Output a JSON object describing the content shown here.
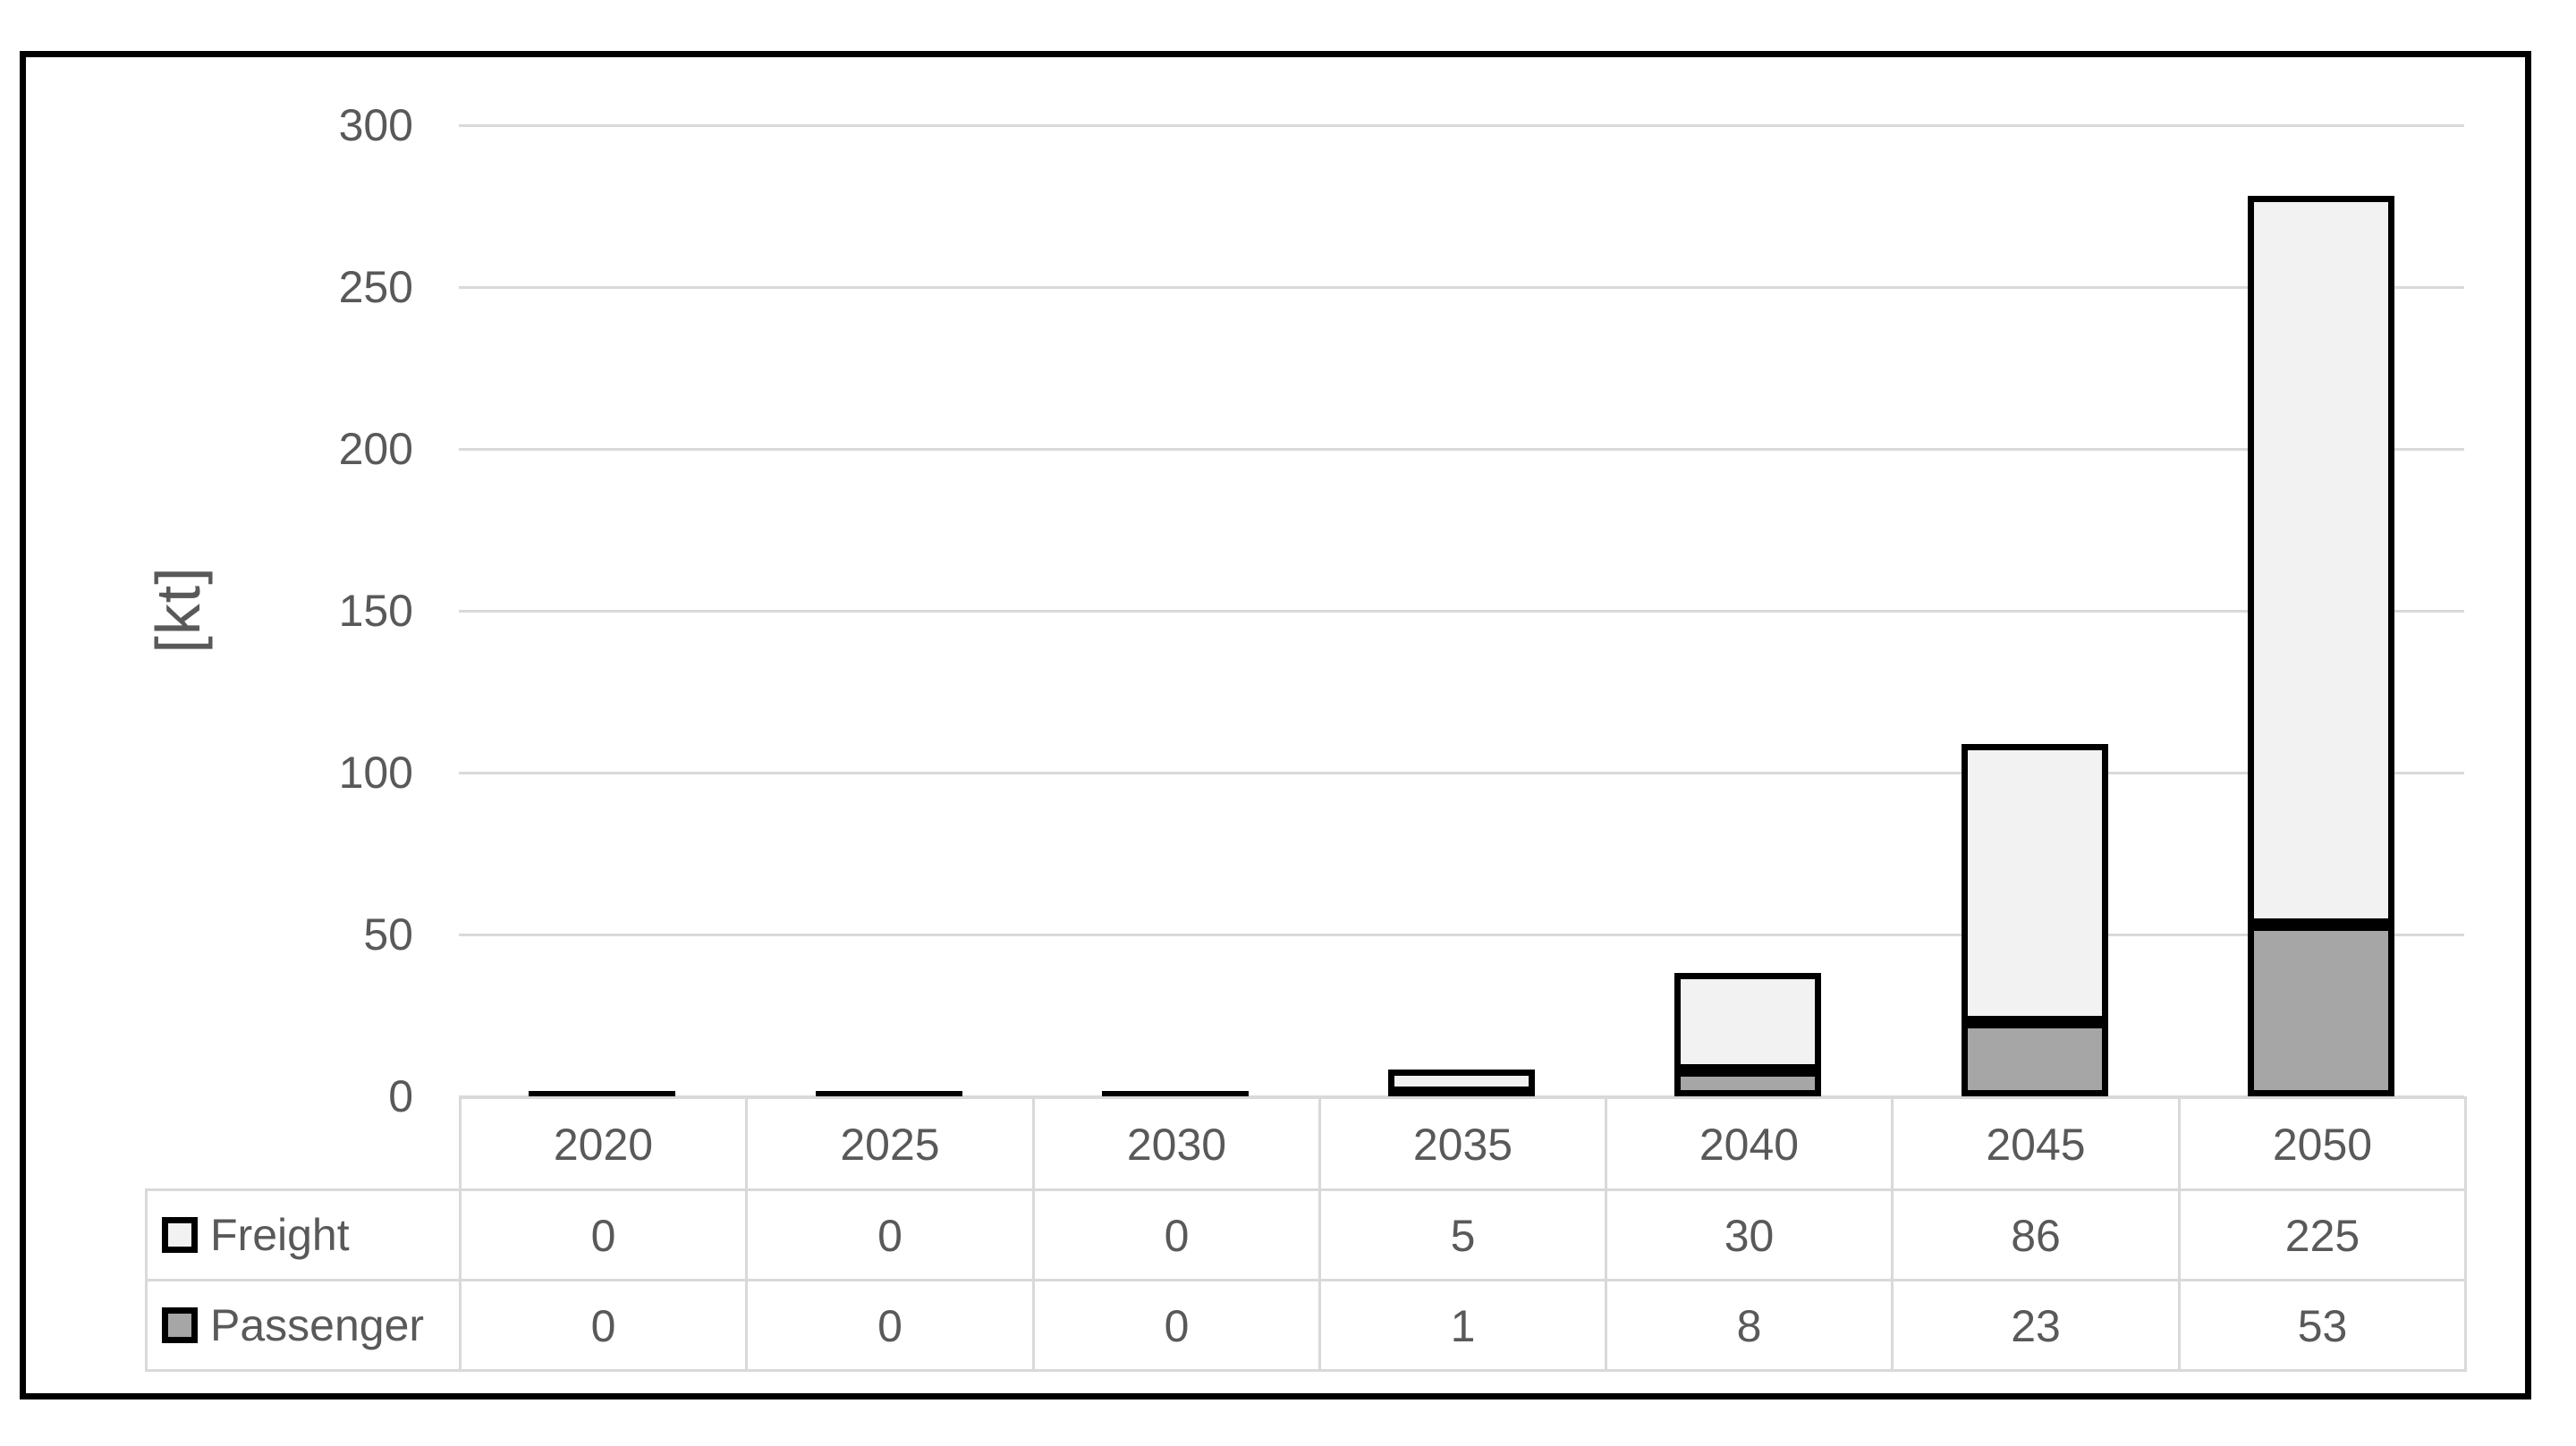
{
  "chart_data": {
    "type": "bar",
    "stacked": true,
    "title": "",
    "ylabel": "[kt]",
    "xlabel": "",
    "categories": [
      "2020",
      "2025",
      "2030",
      "2035",
      "2040",
      "2045",
      "2050"
    ],
    "series": [
      {
        "name": "Freight",
        "values": [
          0,
          0,
          0,
          5,
          30,
          86,
          225
        ],
        "fill": "#f2f2f2"
      },
      {
        "name": "Passenger",
        "values": [
          0,
          0,
          0,
          1,
          8,
          23,
          53
        ],
        "fill": "#a6a6a6"
      }
    ],
    "stack_bottom_to_top": [
      "Passenger",
      "Freight"
    ],
    "ylim": [
      0,
      300
    ],
    "y_ticks": [
      0,
      50,
      100,
      150,
      200,
      250,
      300
    ],
    "grid": true,
    "legend_position": "data-table-left",
    "data_table_shown": true
  },
  "colors": {
    "frame_border": "#000000",
    "bar_border": "#000000",
    "gridline": "#d9d9d9",
    "table_border": "#d9d9d9",
    "text": "#595959",
    "background": "#ffffff"
  }
}
